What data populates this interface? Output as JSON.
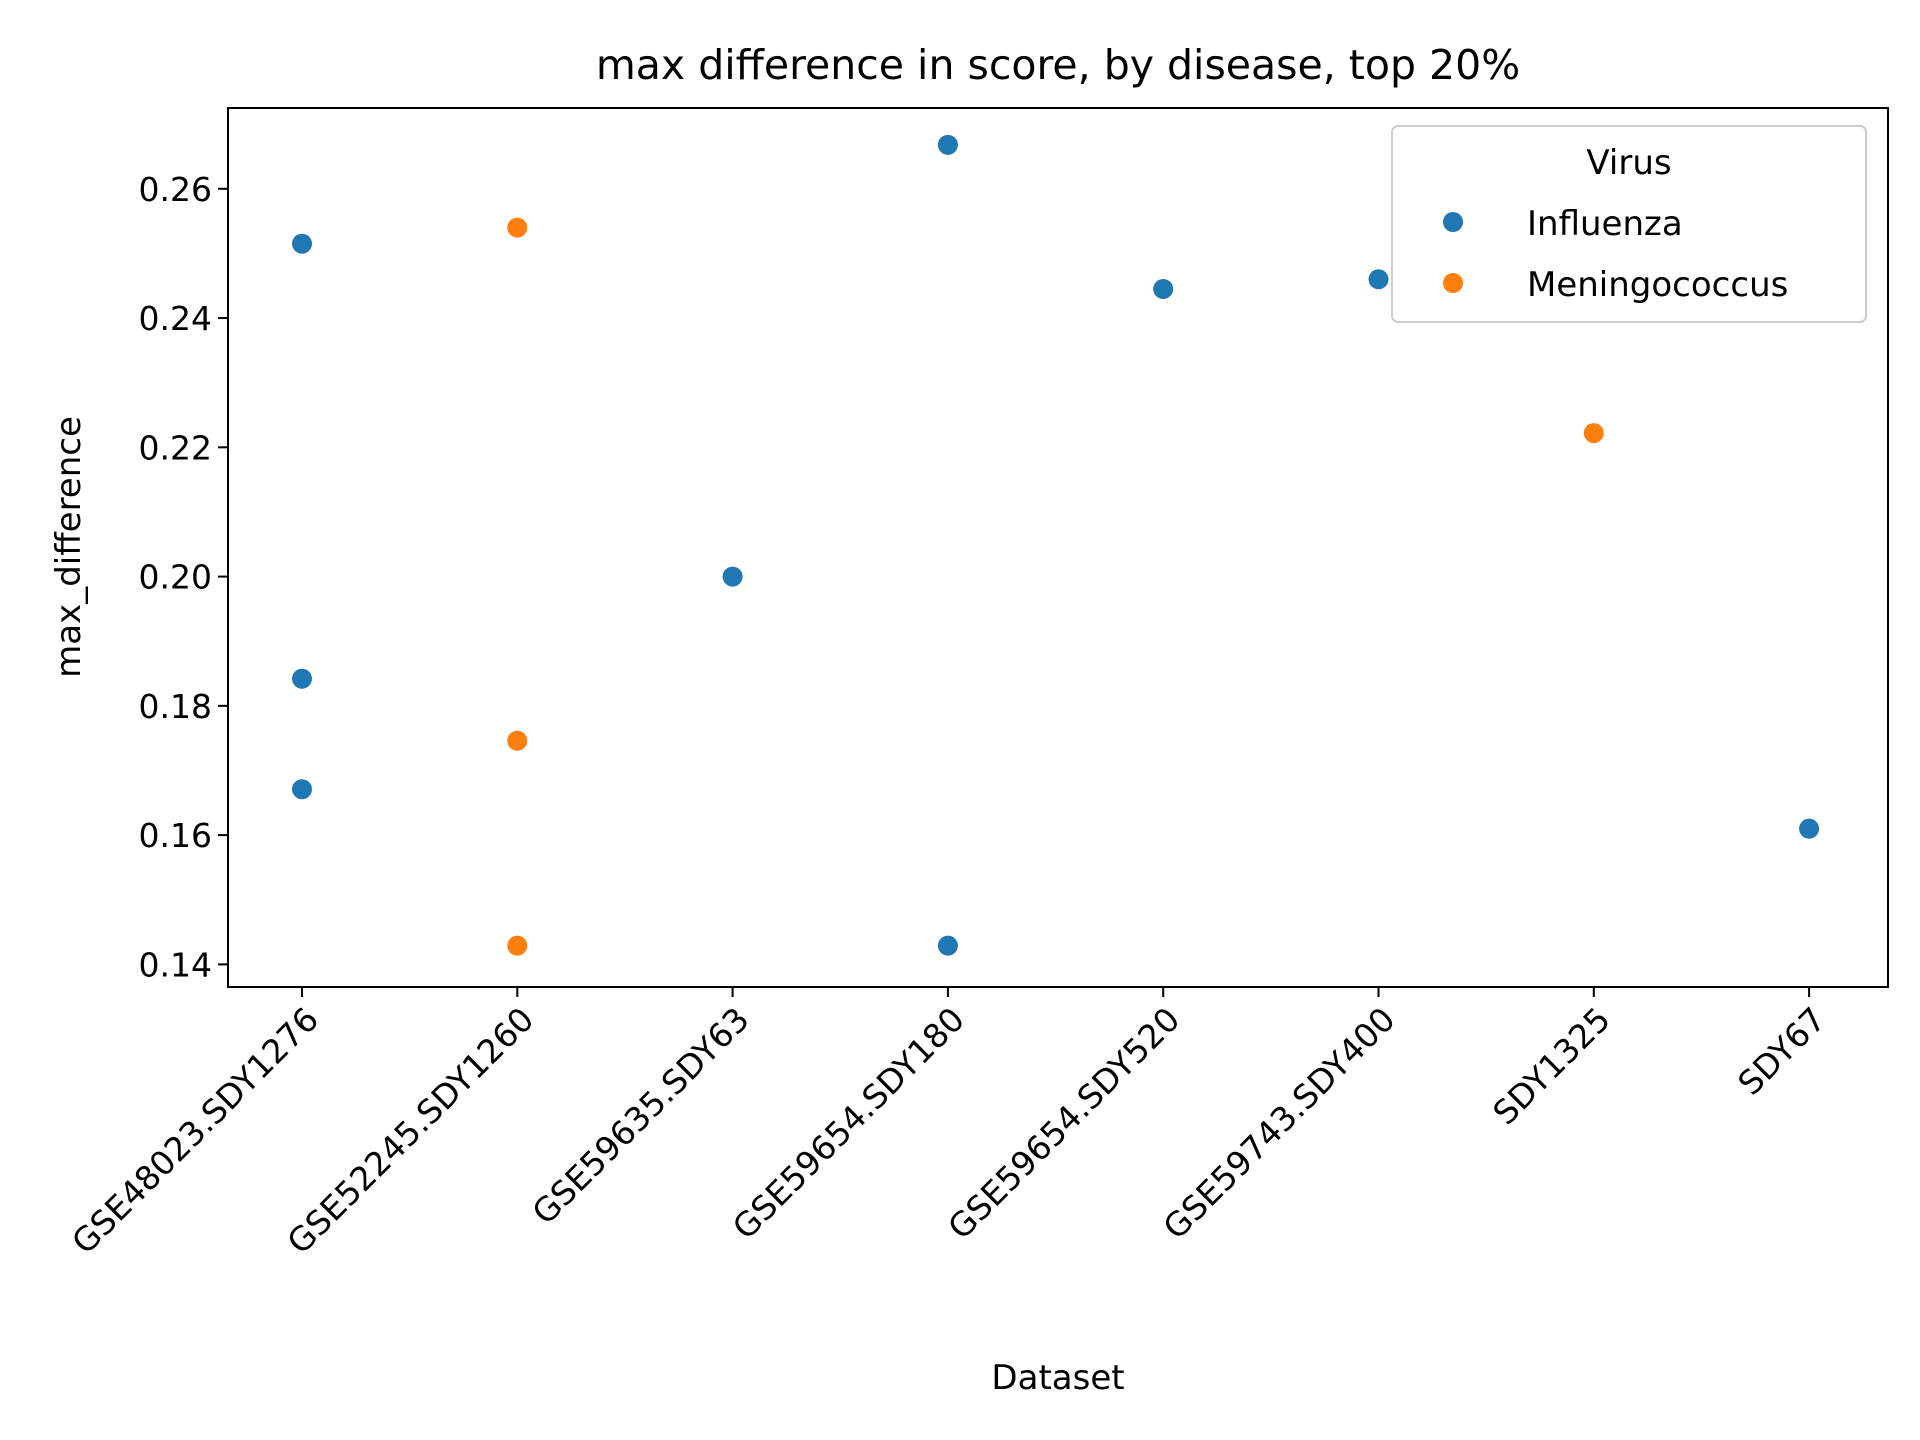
{
  "chart_data": {
    "type": "scatter",
    "title": "max difference in score, by disease, top 20%",
    "xlabel": "Dataset",
    "ylabel": "max_difference",
    "categories": [
      "GSE48023.SDY1276",
      "GSE52245.SDY1260",
      "GSE59635.SDY63",
      "GSE59654.SDY180",
      "GSE59654.SDY520",
      "GSE59743.SDY400",
      "SDY1325",
      "SDY67"
    ],
    "ylim": [
      0.1365,
      0.2725
    ],
    "yticks": [
      "0.14",
      "0.16",
      "0.18",
      "0.20",
      "0.22",
      "0.24",
      "0.26"
    ],
    "grid": false,
    "legend": {
      "title": "Virus",
      "position": "top-right"
    },
    "series": [
      {
        "name": "Influenza",
        "color": "#1f77b4",
        "points": [
          {
            "x": "GSE48023.SDY1276",
            "y": 0.2515
          },
          {
            "x": "GSE48023.SDY1276",
            "y": 0.1842
          },
          {
            "x": "GSE48023.SDY1276",
            "y": 0.1671
          },
          {
            "x": "GSE59635.SDY63",
            "y": 0.2
          },
          {
            "x": "GSE59654.SDY180",
            "y": 0.2668
          },
          {
            "x": "GSE59654.SDY180",
            "y": 0.1429
          },
          {
            "x": "GSE59654.SDY520",
            "y": 0.2445
          },
          {
            "x": "GSE59743.SDY400",
            "y": 0.246
          },
          {
            "x": "SDY67",
            "y": 0.161
          }
        ]
      },
      {
        "name": "Meningococcus",
        "color": "#ff7f0e",
        "points": [
          {
            "x": "GSE52245.SDY1260",
            "y": 0.254
          },
          {
            "x": "GSE52245.SDY1260",
            "y": 0.1746
          },
          {
            "x": "GSE52245.SDY1260",
            "y": 0.1429
          },
          {
            "x": "SDY1325",
            "y": 0.2222
          }
        ]
      }
    ]
  }
}
